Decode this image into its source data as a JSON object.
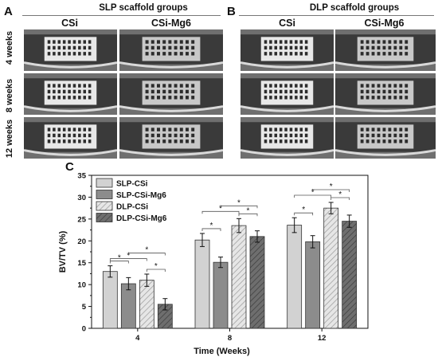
{
  "figure": {
    "panel_a": {
      "letter": "A",
      "title": "SLP scaffold groups"
    },
    "panel_b": {
      "letter": "B",
      "title": "DLP scaffold groups"
    },
    "panel_c": {
      "letter": "C"
    },
    "columns": {
      "a_left": "CSi",
      "a_right": "CSi-Mg6",
      "b_left": "CSi",
      "b_right": "CSi-Mg6"
    },
    "rows": [
      "4 weeks",
      "8 weeks",
      "12 weeks"
    ]
  },
  "colors": {
    "SLP-CSi": "#d2d2d2",
    "SLP-CSi-Mg6": "#8c8c8c",
    "DLP-CSi": "#e6e6e6",
    "DLP-CSi-Mg6": "#6e6e6e"
  },
  "chart_data": {
    "type": "bar",
    "xlabel": "Time (Weeks)",
    "ylabel": "BV/TV (%)",
    "ylim": [
      0,
      35
    ],
    "yticks": [
      "0",
      "5",
      "10",
      "15",
      "20",
      "25",
      "30",
      "35"
    ],
    "categories": [
      "4",
      "8",
      "12"
    ],
    "legend_position": "top-left",
    "series": [
      {
        "name": "SLP-CSi",
        "values": [
          13.0,
          20.2,
          23.6
        ],
        "errors": [
          1.3,
          1.5,
          1.7
        ],
        "pattern": "solid"
      },
      {
        "name": "SLP-CSi-Mg6",
        "values": [
          10.2,
          15.1,
          19.8
        ],
        "errors": [
          1.4,
          1.2,
          1.4
        ],
        "pattern": "solid"
      },
      {
        "name": "DLP-CSi",
        "values": [
          11.0,
          23.5,
          27.5
        ],
        "errors": [
          1.4,
          1.6,
          1.3
        ],
        "pattern": "hatched"
      },
      {
        "name": "DLP-CSi-Mg6",
        "values": [
          5.5,
          21.0,
          24.5
        ],
        "errors": [
          1.3,
          1.3,
          1.4
        ],
        "pattern": "hatched"
      }
    ],
    "significance_marker": "*"
  }
}
